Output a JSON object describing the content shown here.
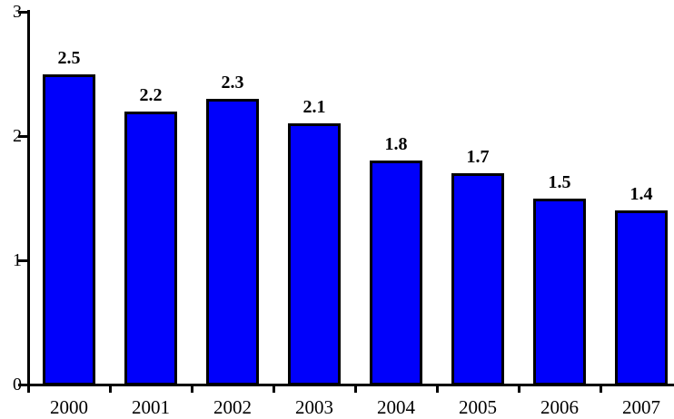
{
  "chart_data": {
    "type": "bar",
    "title": "",
    "xlabel": "",
    "ylabel": "",
    "categories": [
      "2000",
      "2001",
      "2002",
      "2003",
      "2004",
      "2005",
      "2006",
      "2007"
    ],
    "values": [
      2.5,
      2.2,
      2.3,
      2.1,
      1.8,
      1.7,
      1.5,
      1.4
    ],
    "data_labels": [
      "2.5",
      "2.2",
      "2.3",
      "2.1",
      "1.8",
      "1.7",
      "1.5",
      "1.4"
    ],
    "ylim": [
      0,
      3
    ],
    "yticks": [
      "0",
      "1",
      "2",
      "3"
    ],
    "grid": false,
    "legend": null,
    "colors": {
      "bar_fill": "#0000FB",
      "bar_border": "#000000",
      "axis": "#000000",
      "text": "#000000",
      "background": "#FFFFFF"
    }
  }
}
